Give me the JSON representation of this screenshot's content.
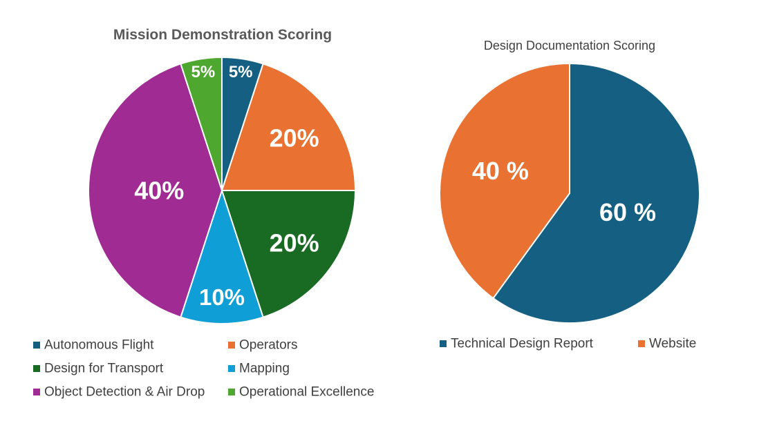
{
  "chart_data": [
    {
      "type": "pie",
      "title": "Mission Demonstration Scoring",
      "legend_position": "bottom",
      "slices": [
        {
          "label": "Autonomous Flight",
          "value": 5,
          "display": "5%",
          "color": "#156082"
        },
        {
          "label": "Operators",
          "value": 20,
          "display": "20%",
          "color": "#E97132"
        },
        {
          "label": "Design for Transport",
          "value": 20,
          "display": "20%",
          "color": "#196B24"
        },
        {
          "label": "Mapping",
          "value": 10,
          "display": "10%",
          "color": "#0F9ED5"
        },
        {
          "label": "Object Detection & Air Drop",
          "value": 40,
          "display": "40%",
          "color": "#A02B93"
        },
        {
          "label": "Operational Excellence",
          "value": 5,
          "display": "5%",
          "color": "#4EA72E"
        }
      ]
    },
    {
      "type": "pie",
      "title": "Design Documentation Scoring",
      "legend_position": "bottom",
      "slices": [
        {
          "label": "Technical Design Report",
          "value": 60,
          "display": "60 %",
          "color": "#156082"
        },
        {
          "label": "Website",
          "value": 40,
          "display": "40 %",
          "color": "#E97132"
        }
      ]
    }
  ]
}
